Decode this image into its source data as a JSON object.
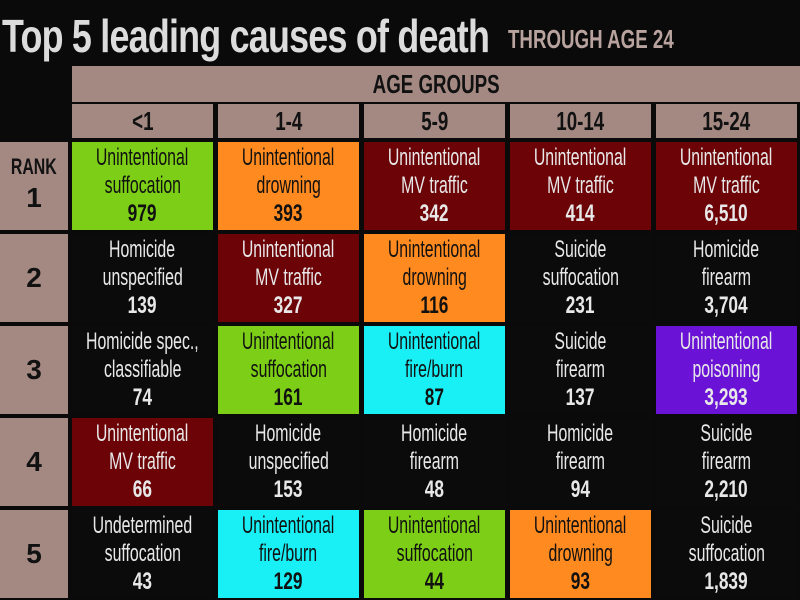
{
  "title": "Top 5 leading causes of death",
  "subtitle": "THROUGH AGE 24",
  "chart_data": {
    "type": "table",
    "header": "AGE GROUPS",
    "row_header": "RANK",
    "columns": [
      "<1",
      "1-4",
      "5-9",
      "10-14",
      "15-24"
    ],
    "ranks": [
      "1",
      "2",
      "3",
      "4",
      "5"
    ],
    "rows": [
      [
        {
          "l1": "Unintentional",
          "l2": "suffocation",
          "value": "979",
          "color": "#7ccf16"
        },
        {
          "l1": "Unintentional",
          "l2": "drowning",
          "value": "393",
          "color": "#ff8a1f"
        },
        {
          "l1": "Unintentional",
          "l2": "MV traffic",
          "value": "342",
          "color": "#6b0307"
        },
        {
          "l1": "Unintentional",
          "l2": "MV traffic",
          "value": "414",
          "color": "#6b0307"
        },
        {
          "l1": "Unintentional",
          "l2": "MV traffic",
          "value": "6,510",
          "color": "#6b0307"
        }
      ],
      [
        {
          "l1": "Homicide",
          "l2": "unspecified",
          "value": "139",
          "color": "#0b0b0b"
        },
        {
          "l1": "Unintentional",
          "l2": "MV traffic",
          "value": "327",
          "color": "#6b0307"
        },
        {
          "l1": "Unintentional",
          "l2": "drowning",
          "value": "116",
          "color": "#ff8a1f"
        },
        {
          "l1": "Suicide",
          "l2": "suffocation",
          "value": "231",
          "color": "#0b0b0b"
        },
        {
          "l1": "Homicide",
          "l2": "firearm",
          "value": "3,704",
          "color": "#0b0b0b"
        }
      ],
      [
        {
          "l1": "Homicide spec.,",
          "l2": "classifiable",
          "value": "74",
          "color": "#0b0b0b"
        },
        {
          "l1": "Unintentional",
          "l2": "suffocation",
          "value": "161",
          "color": "#7ccf16"
        },
        {
          "l1": "Unintentional",
          "l2": "fire/burn",
          "value": "87",
          "color": "#19f0f5"
        },
        {
          "l1": "Suicide",
          "l2": "firearm",
          "value": "137",
          "color": "#0b0b0b"
        },
        {
          "l1": "Unintentional",
          "l2": "poisoning",
          "value": "3,293",
          "color": "#6a12d6"
        }
      ],
      [
        {
          "l1": "Unintentional",
          "l2": "MV traffic",
          "value": "66",
          "color": "#6b0307"
        },
        {
          "l1": "Homicide",
          "l2": "unspecified",
          "value": "153",
          "color": "#0b0b0b"
        },
        {
          "l1": "Homicide",
          "l2": "firearm",
          "value": "48",
          "color": "#0b0b0b"
        },
        {
          "l1": "Homicide",
          "l2": "firearm",
          "value": "94",
          "color": "#0b0b0b"
        },
        {
          "l1": "Suicide",
          "l2": "firearm",
          "value": "2,210",
          "color": "#0b0b0b"
        }
      ],
      [
        {
          "l1": "Undetermined",
          "l2": "suffocation",
          "value": "43",
          "color": "#0b0b0b"
        },
        {
          "l1": "Unintentional",
          "l2": "fire/burn",
          "value": "129",
          "color": "#19f0f5"
        },
        {
          "l1": "Unintentional",
          "l2": "suffocation",
          "value": "44",
          "color": "#7ccf16"
        },
        {
          "l1": "Unintentional",
          "l2": "drowning",
          "value": "93",
          "color": "#ff8a1f"
        },
        {
          "l1": "Suicide",
          "l2": "suffocation",
          "value": "1,839",
          "color": "#0b0b0b"
        }
      ]
    ]
  },
  "colors": {
    "header_bg": "#a48983",
    "page_bg": "#0a0a0a",
    "dark_text_on": [
      "#7ccf16",
      "#ff8a1f",
      "#19f0f5"
    ]
  }
}
